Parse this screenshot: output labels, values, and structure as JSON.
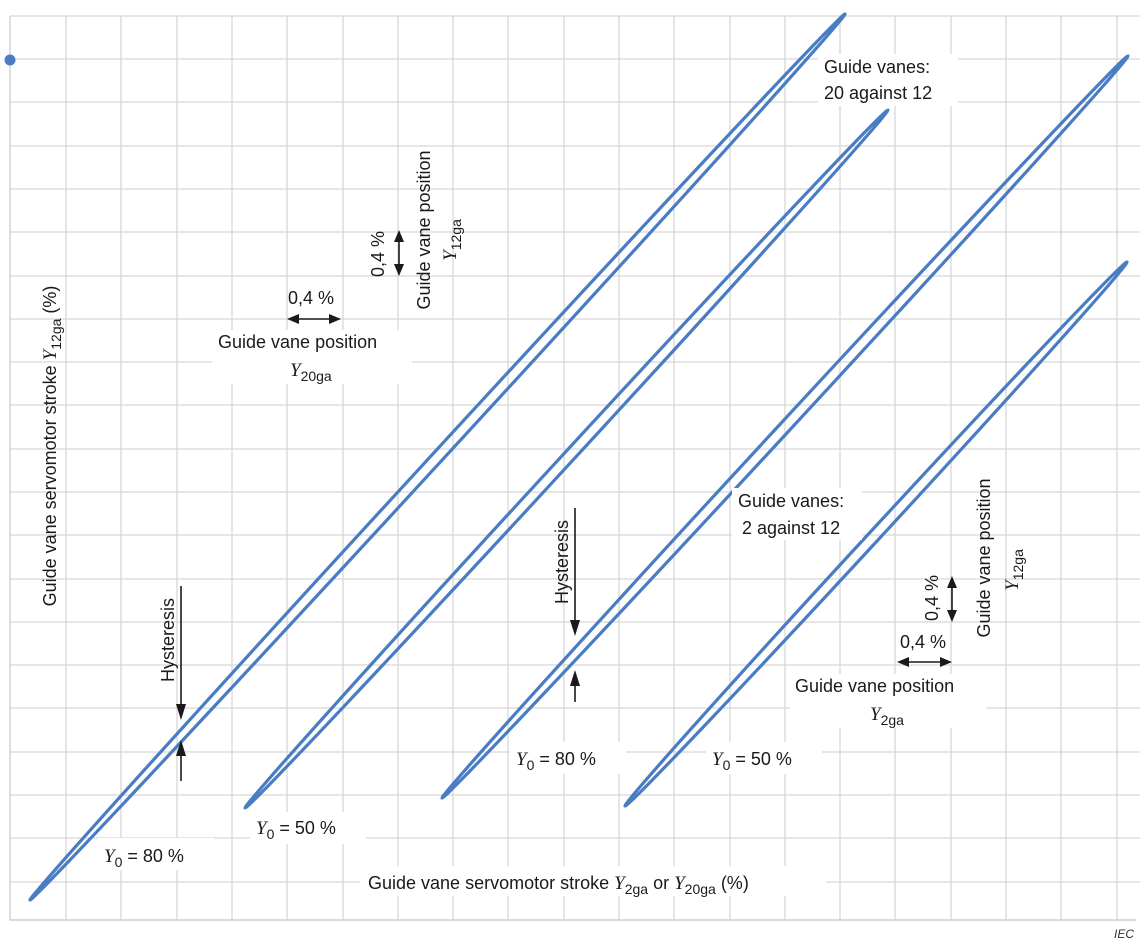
{
  "labels": {
    "y_axis": {
      "pre": "Guide vane servomotor stroke ",
      "var": "Y",
      "sub": "12ga",
      "post": "  (%)"
    },
    "x_axis": {
      "pre": "Guide vane servomotor stroke ",
      "var1": "Y",
      "sub1": "2ga",
      "mid": " or ",
      "var2": "Y",
      "sub2": "20ga",
      "post": "  (%)"
    },
    "group_20_12": [
      "Guide vanes:",
      "20 against 12"
    ],
    "group_2_12": [
      "Guide vanes:",
      "2 against 12"
    ],
    "scale_h": "0,4 %",
    "scale_v": "0,4 %",
    "gvp_text": "Guide vane position",
    "y12ga": {
      "var": "Y",
      "sub": "12ga"
    },
    "y20ga": {
      "var": "Y",
      "sub": "20ga"
    },
    "y2ga": {
      "var": "Y",
      "sub": "2ga"
    },
    "hysteresis": "Hysteresis",
    "y0_80_a": {
      "var": "Y",
      "sub": "0",
      "post": "  = 80 %"
    },
    "y0_50_a": {
      "var": "Y",
      "sub": "0",
      "post": "  = 50 %"
    },
    "y0_80_b": {
      "var": "Y",
      "sub": "0",
      "post": "  = 80 %"
    },
    "y0_50_b": {
      "var": "Y",
      "sub": "0",
      "post": "  = 50 %"
    },
    "iec": "IEC"
  },
  "colors": {
    "loop": "#4a7cc4",
    "grid": "#d7d7d7",
    "text": "#1a1a1a"
  },
  "loops": [
    {
      "name": "loop-20-against-12-y0-80",
      "group": "20 against 12",
      "y0": "80 %"
    },
    {
      "name": "loop-20-against-12-y0-50",
      "group": "20 against 12",
      "y0": "50 %"
    },
    {
      "name": "loop-2-against-12-y0-80",
      "group": "2 against 12",
      "y0": "80 %"
    },
    {
      "name": "loop-2-against-12-y0-50",
      "group": "2 against 12",
      "y0": "50 %"
    }
  ]
}
